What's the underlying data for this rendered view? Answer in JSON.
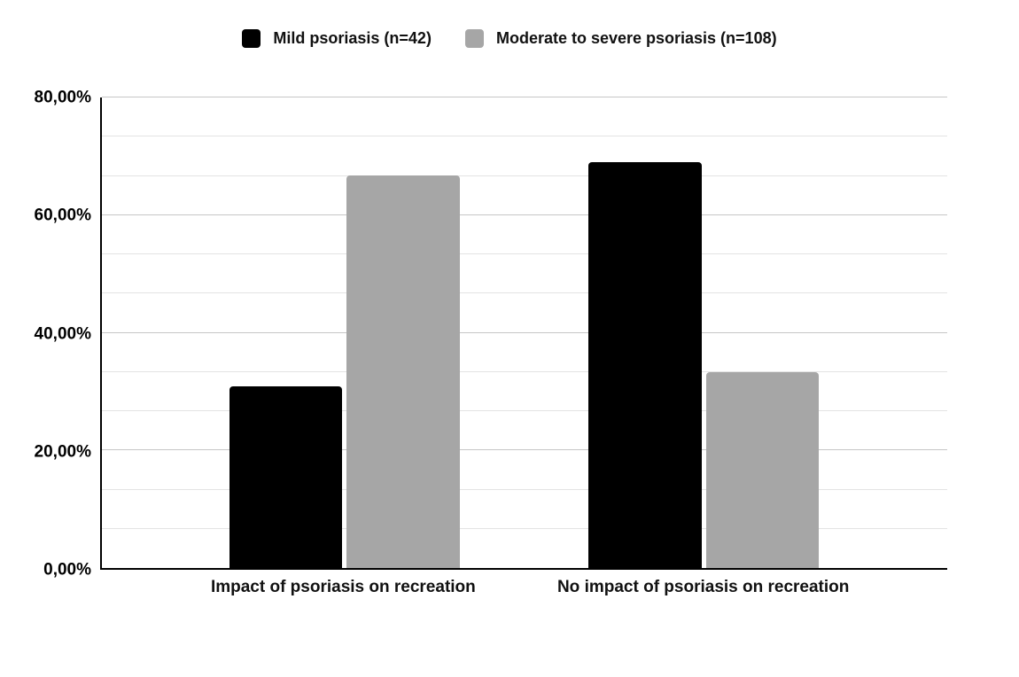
{
  "chart_data": {
    "type": "bar",
    "categories": [
      "Impact of psoriasis on recreation",
      "No impact of psoriasis on recreation"
    ],
    "series": [
      {
        "name": "Mild psoriasis (n=42)",
        "color": "#000000",
        "values": [
          30.95,
          69.05
        ]
      },
      {
        "name": "Moderate to severe psoriasis (n=108)",
        "color": "#a6a6a6",
        "values": [
          66.67,
          33.33
        ]
      }
    ],
    "title": "",
    "xlabel": "",
    "ylabel": "",
    "ylim": [
      0,
      80
    ],
    "y_tick_labels": [
      "0,00%",
      "20,00%",
      "40,00%",
      "60,00%",
      "80,00%"
    ],
    "y_major_step": 20,
    "y_minor_divisions_per_major": 3,
    "grid": "horizontal",
    "legend_position": "top",
    "value_format": "percent with comma decimals"
  },
  "colors": {
    "background": "#ffffff",
    "axis": "#000000",
    "major_gridline": "#c6c6c6",
    "minor_gridline": "#e3e3e3",
    "series_mild": "#000000",
    "series_moderate_severe": "#a6a6a6",
    "text": "#111111"
  }
}
